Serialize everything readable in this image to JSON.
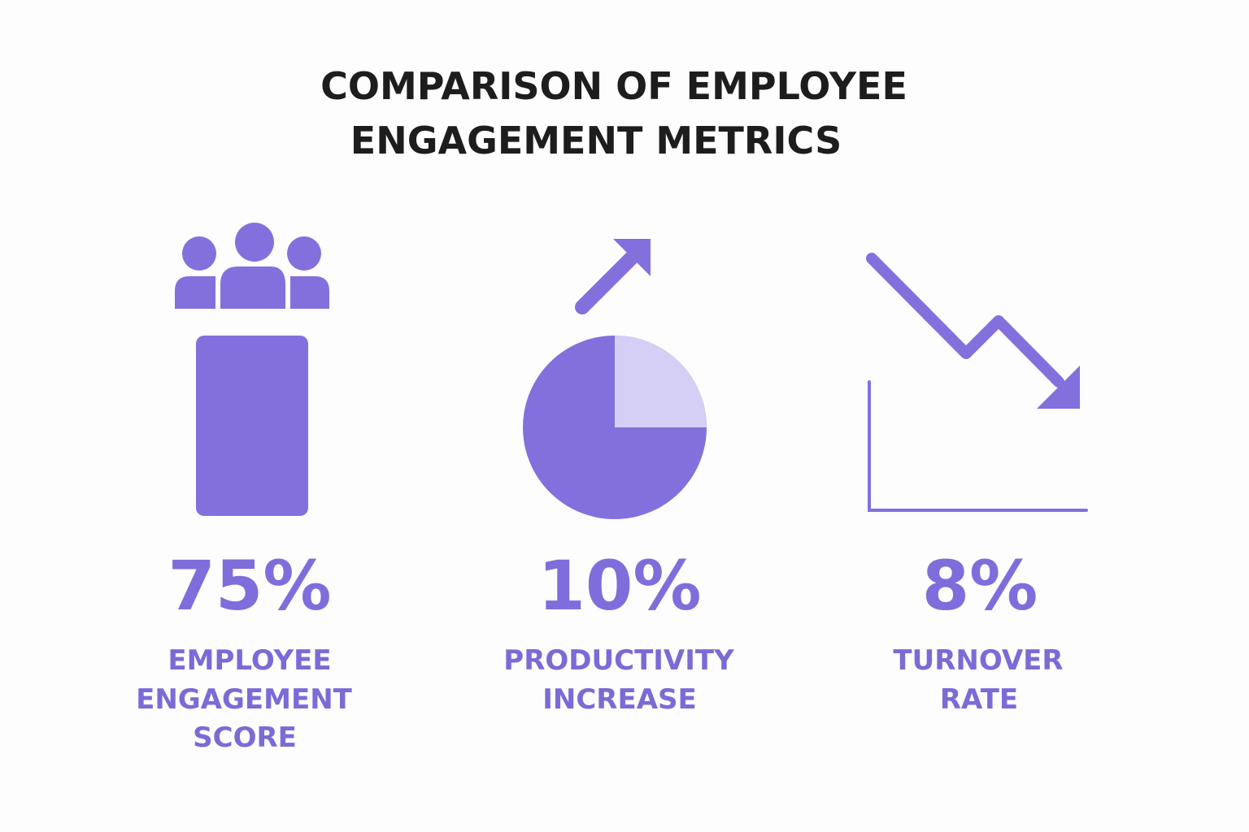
{
  "title": [
    "COMPARISON OF EMPLOYEE",
    "ENGAGEMENT METRICS"
  ],
  "metrics": [
    {
      "value": "75%",
      "label": [
        "EMPLOYEE",
        "ENGAGEMENT",
        "SCORE"
      ]
    },
    {
      "value": "10%",
      "label": [
        "PRODUCTIVITY",
        "INCREASE"
      ]
    },
    {
      "value": "8%",
      "label": [
        "TURNOVER",
        "RATE"
      ]
    }
  ]
}
